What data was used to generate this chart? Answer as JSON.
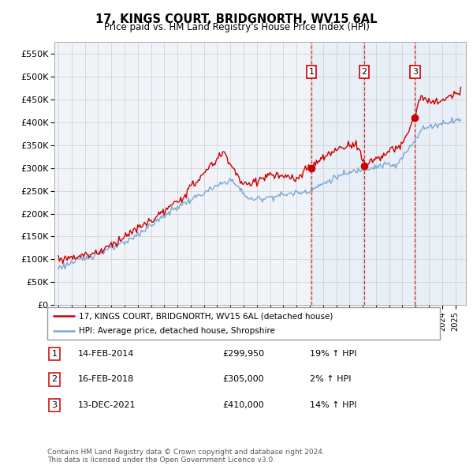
{
  "title": "17, KINGS COURT, BRIDGNORTH, WV15 6AL",
  "subtitle": "Price paid vs. HM Land Registry's House Price Index (HPI)",
  "ylim": [
    0,
    575000
  ],
  "yticks": [
    0,
    50000,
    100000,
    150000,
    200000,
    250000,
    300000,
    350000,
    400000,
    450000,
    500000,
    550000
  ],
  "ytick_labels": [
    "£0",
    "£50K",
    "£100K",
    "£150K",
    "£200K",
    "£250K",
    "£300K",
    "£350K",
    "£400K",
    "£450K",
    "£500K",
    "£550K"
  ],
  "sales": [
    {
      "date_num": 2014.12,
      "price": 299950,
      "label": "1"
    },
    {
      "date_num": 2018.12,
      "price": 305000,
      "label": "2"
    },
    {
      "date_num": 2021.95,
      "price": 410000,
      "label": "3"
    }
  ],
  "sale_dates": [
    2014.12,
    2018.12,
    2021.95
  ],
  "sale_labels": [
    "1",
    "2",
    "3"
  ],
  "legend_house": "17, KINGS COURT, BRIDGNORTH, WV15 6AL (detached house)",
  "legend_hpi": "HPI: Average price, detached house, Shropshire",
  "table_rows": [
    {
      "num": "1",
      "date": "14-FEB-2014",
      "price": "£299,950",
      "change": "19% ↑ HPI"
    },
    {
      "num": "2",
      "date": "16-FEB-2018",
      "price": "£305,000",
      "change": "2% ↑ HPI"
    },
    {
      "num": "3",
      "date": "13-DEC-2021",
      "price": "£410,000",
      "change": "14% ↑ HPI"
    }
  ],
  "footer": "Contains HM Land Registry data © Crown copyright and database right 2024.\nThis data is licensed under the Open Government Licence v3.0.",
  "house_color": "#cc0000",
  "hpi_color": "#7aa8d4",
  "shaded_color": "#ddeeff",
  "grid_color": "#cccccc",
  "background_color": "#ffffff",
  "xlim_left": 1994.7,
  "xlim_right": 2025.8
}
